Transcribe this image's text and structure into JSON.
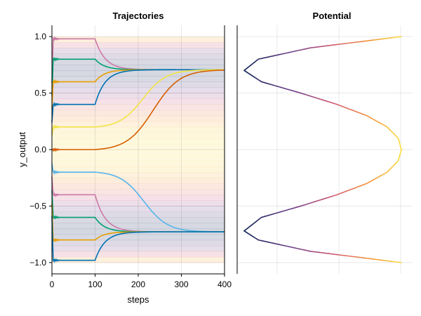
{
  "chart_data": [
    {
      "type": "line",
      "title": "Trajectories",
      "xlabel": "steps",
      "ylabel": "y_output",
      "xlim": [
        0,
        400
      ],
      "ylim": [
        -1.1,
        1.1
      ],
      "x_ticks": [
        "0",
        "100",
        "200",
        "300",
        "400"
      ],
      "y_ticks": [
        "−1.0",
        "−0.5",
        "0.0",
        "0.5",
        "1.0"
      ],
      "grid": true,
      "background": "horizontal potential heatmap bands between y=-1 and y=1",
      "switch_step": 100,
      "attractors": [
        0.707,
        -0.728
      ],
      "series": [
        {
          "start": 0.98,
          "end": 0.707,
          "color": "#cc79a7"
        },
        {
          "start": 0.8,
          "end": 0.707,
          "color": "#009e73"
        },
        {
          "start": 0.6,
          "end": 0.707,
          "color": "#e69f00"
        },
        {
          "start": 0.4,
          "end": 0.707,
          "color": "#0072b2"
        },
        {
          "start": 0.2,
          "end": 0.707,
          "color": "#f0e442"
        },
        {
          "start": 0.0,
          "end": 0.707,
          "color": "#d55e00"
        },
        {
          "start": -0.2,
          "end": -0.728,
          "color": "#56b4e9"
        },
        {
          "start": -0.4,
          "end": -0.728,
          "color": "#cc79a7"
        },
        {
          "start": -0.6,
          "end": -0.728,
          "color": "#009e73"
        },
        {
          "start": -0.8,
          "end": -0.728,
          "color": "#e69f00"
        },
        {
          "start": -0.98,
          "end": -0.728,
          "color": "#0072b2"
        }
      ]
    },
    {
      "type": "line",
      "title": "Potential",
      "xlabel": "",
      "ylabel": "",
      "description": "potential curve vs y, colored by height (dark blue = low, yellow = high)",
      "y": [
        -1.0,
        -0.9,
        -0.8,
        -0.72,
        -0.6,
        -0.5,
        -0.4,
        -0.3,
        -0.2,
        -0.1,
        0.0,
        0.1,
        0.2,
        0.3,
        0.4,
        0.5,
        0.6,
        0.7,
        0.8,
        0.9,
        1.0
      ],
      "potential": [
        1.0,
        0.42,
        0.09,
        0.0,
        0.11,
        0.36,
        0.59,
        0.78,
        0.91,
        0.98,
        1.0,
        0.98,
        0.91,
        0.78,
        0.59,
        0.36,
        0.11,
        0.0,
        0.09,
        0.42,
        1.0
      ],
      "ylim": [
        -1.1,
        1.1
      ],
      "grid": true
    }
  ]
}
